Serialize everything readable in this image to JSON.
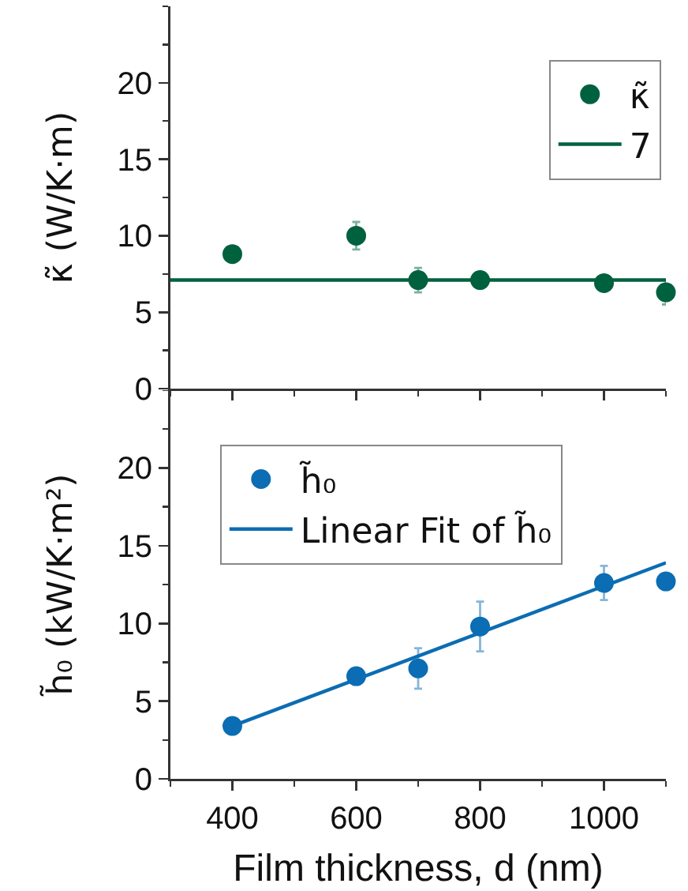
{
  "chart_data": [
    {
      "type": "scatter",
      "xlim": [
        300,
        1100
      ],
      "xticks": [
        {
          "value": 300,
          "label": null
        },
        400,
        {
          "value": 500,
          "label": null
        },
        600,
        {
          "value": 700,
          "label": null
        },
        800,
        {
          "value": 900,
          "label": null
        },
        1000,
        {
          "value": 1100,
          "label": null
        }
      ],
      "ylabel": "κ̃ (W/K·m)",
      "ylim": [
        0,
        25
      ],
      "yticks": [
        0,
        {
          "value": 2.5,
          "label": null
        },
        5,
        {
          "value": 7.5,
          "label": null
        },
        10,
        {
          "value": 12.5,
          "label": null
        },
        15,
        {
          "value": 17.5,
          "label": null
        },
        20,
        {
          "value": 22.5,
          "label": null
        },
        {
          "value": 25,
          "label": null
        }
      ],
      "tick_labels": "y",
      "legend": "top right",
      "series": [
        {
          "name": "κ̃",
          "color": "#00613f",
          "marker": "circle",
          "x": [
            400,
            600,
            700,
            800,
            1000,
            1100
          ],
          "values": [
            8.8,
            10.0,
            7.1,
            7.1,
            6.9,
            6.3
          ],
          "errors": [
            null,
            0.9,
            0.8,
            null,
            null,
            0.8
          ]
        },
        {
          "name": "7",
          "type": "line",
          "color": "#00613f",
          "x": [
            300,
            1100
          ],
          "values": [
            7.1,
            7.1
          ]
        }
      ]
    },
    {
      "type": "scatter",
      "xlabel": "Film thickness, d (nm)",
      "xlim": [
        300,
        1100
      ],
      "xticks": [
        {
          "value": 300,
          "label": null
        },
        400,
        {
          "value": 500,
          "label": null
        },
        600,
        {
          "value": 700,
          "label": null
        },
        800,
        {
          "value": 900,
          "label": null
        },
        1000,
        {
          "value": 1100,
          "label": null
        }
      ],
      "ylabel": "h̃₀ (kW/K·m²)",
      "ylim": [
        0,
        25
      ],
      "yticks": [
        0,
        {
          "value": 2.5,
          "label": null
        },
        5,
        {
          "value": 7.5,
          "label": null
        },
        10,
        {
          "value": 12.5,
          "label": null
        },
        15,
        {
          "value": 17.5,
          "label": null
        },
        20,
        {
          "value": 22.5,
          "label": null
        },
        {
          "value": 25,
          "label": null
        }
      ],
      "legend": "top left",
      "series": [
        {
          "name": "h̃₀",
          "color": "#0b6db3",
          "marker": "circle",
          "x": [
            400,
            600,
            700,
            800,
            1000,
            1100
          ],
          "values": [
            3.4,
            6.6,
            7.1,
            9.8,
            12.6,
            12.7
          ],
          "errors": [
            0.5,
            null,
            1.3,
            1.6,
            1.1,
            null
          ]
        },
        {
          "name": "Linear Fit of h̃₀",
          "type": "line",
          "color": "#0b6db3",
          "x": [
            400,
            1100
          ],
          "values": [
            3.4,
            13.9
          ]
        }
      ]
    }
  ]
}
